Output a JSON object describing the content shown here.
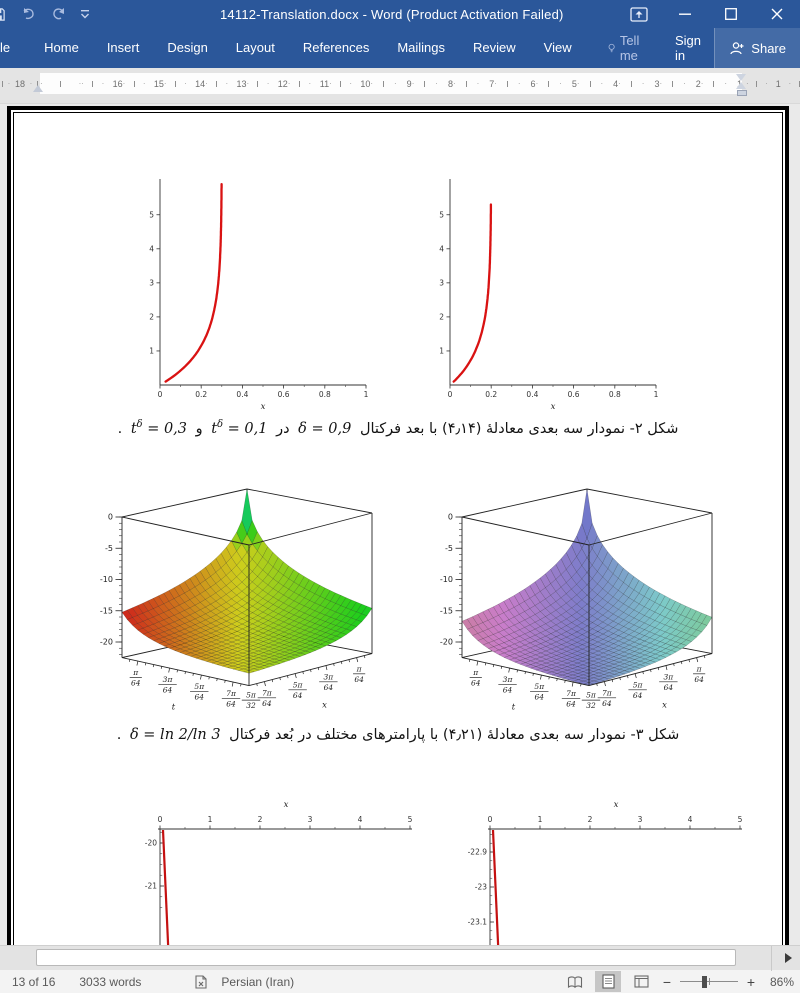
{
  "window": {
    "title": "14112-Translation.docx - Word (Product Activation Failed)"
  },
  "ribbon": {
    "tabs": [
      "le",
      "Home",
      "Insert",
      "Design",
      "Layout",
      "References",
      "Mailings",
      "Review",
      "View"
    ],
    "tell_me": "Tell me",
    "sign_in": "Sign in",
    "share": "Share"
  },
  "ruler": {
    "left_margin_number": "18",
    "numbers": [
      "16",
      "15",
      "14",
      "13",
      "12",
      "11",
      "10",
      "9",
      "8",
      "7",
      "6",
      "5",
      "4",
      "3",
      "2",
      "1"
    ],
    "right_margin_number": "1"
  },
  "captions": {
    "fig2": {
      "intro": "شکل ۲- نمودار سه بعدی معادلهٔ (۴٫۱۴) با بعد فرکتال",
      "eq1": "δ = 0,9",
      "mid": "در",
      "t_base": "t",
      "t_sup": "δ",
      "eq2_val": " = 0,1",
      "conj": "و",
      "eq3_val": " = 0,3",
      "period": "."
    },
    "fig3": {
      "intro": "شکل ۳- نمودار سه بعدی معادلهٔ (۴٫۲۱) با پارامترهای مختلف در بُعد فرکتال",
      "eq": "δ = ln 2/ln 3",
      "period": "."
    }
  },
  "status_bar": {
    "page": "13 of 16",
    "words": "3033 words",
    "language": "Persian (Iran)",
    "zoom": "86%"
  },
  "chart_data": [
    {
      "type": "line",
      "xlabel": "x",
      "x_ticks": [
        "0",
        "0.2",
        "0.4",
        "0.6",
        "0.8",
        "1"
      ],
      "y_ticks": [
        "1",
        "2",
        "3",
        "4",
        "5"
      ],
      "xlim": [
        0,
        1
      ],
      "ylim": [
        0,
        6
      ],
      "curve": {
        "color": "#d91212",
        "start_x": 0,
        "vertical_asymptote_x": 0.3,
        "y_max": 5.9,
        "description": "red curve rising from origin, blows up vertically at x = 0.3"
      }
    },
    {
      "type": "line",
      "xlabel": "x",
      "x_ticks": [
        "0",
        "0.2",
        "0.4",
        "0.6",
        "0.8",
        "1"
      ],
      "y_ticks": [
        "1",
        "2",
        "3",
        "4",
        "5"
      ],
      "xlim": [
        0,
        1
      ],
      "ylim": [
        0,
        5.5
      ],
      "curve": {
        "color": "#d91212",
        "start_x": 0,
        "vertical_asymptote_x": 0.2,
        "y_max": 5.3,
        "description": "red curve rising from origin, blows up vertically at x = 0.2"
      }
    },
    {
      "type": "surface",
      "z_ticks": [
        0,
        -5,
        -10,
        -15,
        -20
      ],
      "zlim": [
        0,
        -22.5
      ],
      "t_axis": {
        "label": "t",
        "ticks": [
          [
            "π",
            "64"
          ],
          [
            "3π",
            "64"
          ],
          [
            "5π",
            "64"
          ],
          [
            "7π",
            "64"
          ]
        ]
      },
      "x_axis": {
        "label": "x",
        "ticks": [
          [
            "7π",
            "64"
          ],
          [
            "5π",
            "64"
          ],
          [
            "3π",
            "64"
          ],
          [
            "π",
            "64"
          ]
        ]
      },
      "corner_tick": [
        "5π",
        "32"
      ],
      "surface": {
        "peak_z": 0,
        "plateau_z": -21,
        "description": "sharp spike to z=0 at back corner (t,x -> 0), decays to plateau near -21"
      },
      "palette": {
        "name": "vivid-rainbow",
        "hue_left": 2,
        "hue_right": 125,
        "hue_top": 243,
        "sat": 76,
        "light": 46
      }
    },
    {
      "type": "surface",
      "z_ticks": [
        0,
        -5,
        -10,
        -15,
        -20
      ],
      "zlim": [
        0,
        -22.5
      ],
      "t_axis": {
        "label": "t",
        "ticks": [
          [
            "π",
            "64"
          ],
          [
            "3π",
            "64"
          ],
          [
            "5π",
            "64"
          ],
          [
            "7π",
            "64"
          ]
        ]
      },
      "x_axis": {
        "label": "x",
        "ticks": [
          [
            "7π",
            "64"
          ],
          [
            "5π",
            "64"
          ],
          [
            "3π",
            "64"
          ],
          [
            "π",
            "64"
          ]
        ]
      },
      "corner_tick": [
        "5π",
        "32"
      ],
      "surface": {
        "peak_z": 0,
        "plateau_z": -23,
        "description": "same spike surface with pastel palette, plateau near -23"
      },
      "palette": {
        "name": "pastel",
        "hue_left": 330,
        "hue_right": 142,
        "hue_top": 235,
        "sat": 42,
        "light": 64
      }
    },
    {
      "type": "line",
      "xlabel": "x",
      "x_ticks": [
        "0",
        "1",
        "2",
        "3",
        "4",
        "5"
      ],
      "y_ticks": [
        "-20",
        "-21"
      ],
      "xlim": [
        0,
        5
      ],
      "orientation": "x-axis on top, y descending, clipped at page bottom",
      "curve": {
        "color": "#c41111",
        "description": "steep near-vertical red line just right of x=0 going down"
      },
      "layout": {
        "first_tick_py": 48,
        "tick_spacing_py": 43
      }
    },
    {
      "type": "line",
      "xlabel": "x",
      "x_ticks": [
        "0",
        "1",
        "2",
        "3",
        "4",
        "5"
      ],
      "y_ticks": [
        "-22.9",
        "-23",
        "-23.1"
      ],
      "xlim": [
        0,
        5
      ],
      "orientation": "x-axis on top, y descending, clipped at page bottom",
      "curve": {
        "color": "#c41111",
        "description": "steep near-vertical red line just right of x=0 going down"
      },
      "layout": {
        "first_tick_py": 57,
        "tick_spacing_py": 35
      }
    }
  ]
}
